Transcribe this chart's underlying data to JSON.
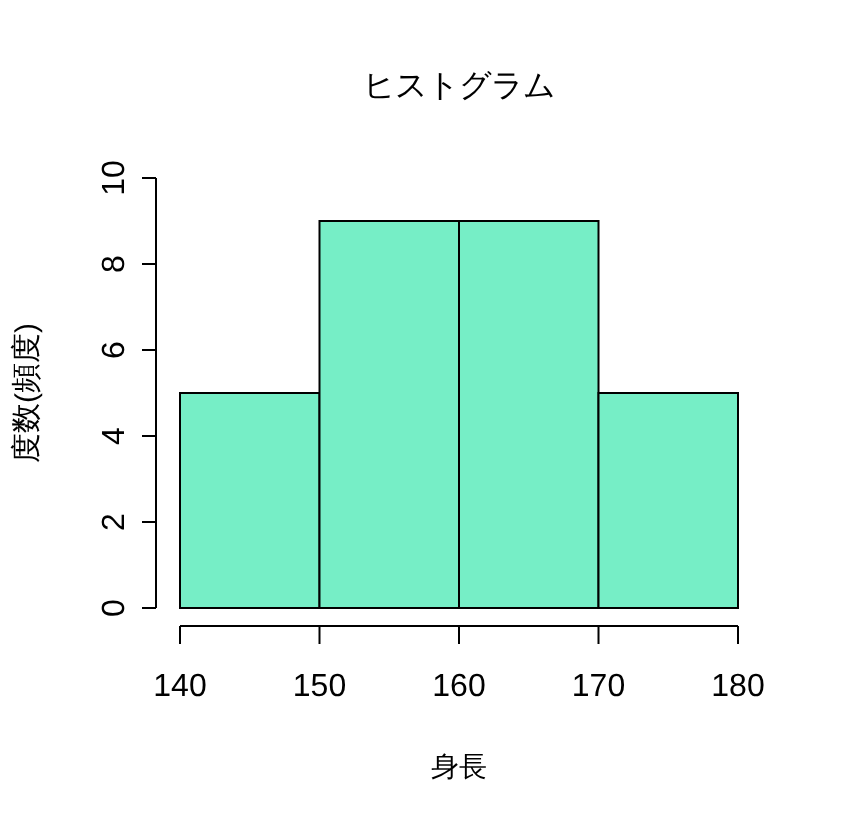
{
  "chart_data": {
    "type": "histogram",
    "title": "ヒストグラム",
    "xlabel": "身長",
    "ylabel": "度数(頻度)",
    "bins": [
      140,
      150,
      160,
      170,
      180
    ],
    "values": [
      5,
      9,
      9,
      5
    ],
    "color": "#76eec6",
    "xlim": [
      140,
      180
    ],
    "xticks": [
      140,
      150,
      160,
      170,
      180
    ],
    "ylim": [
      0,
      10
    ],
    "yticks": [
      0,
      2,
      4,
      6,
      8,
      10
    ]
  }
}
